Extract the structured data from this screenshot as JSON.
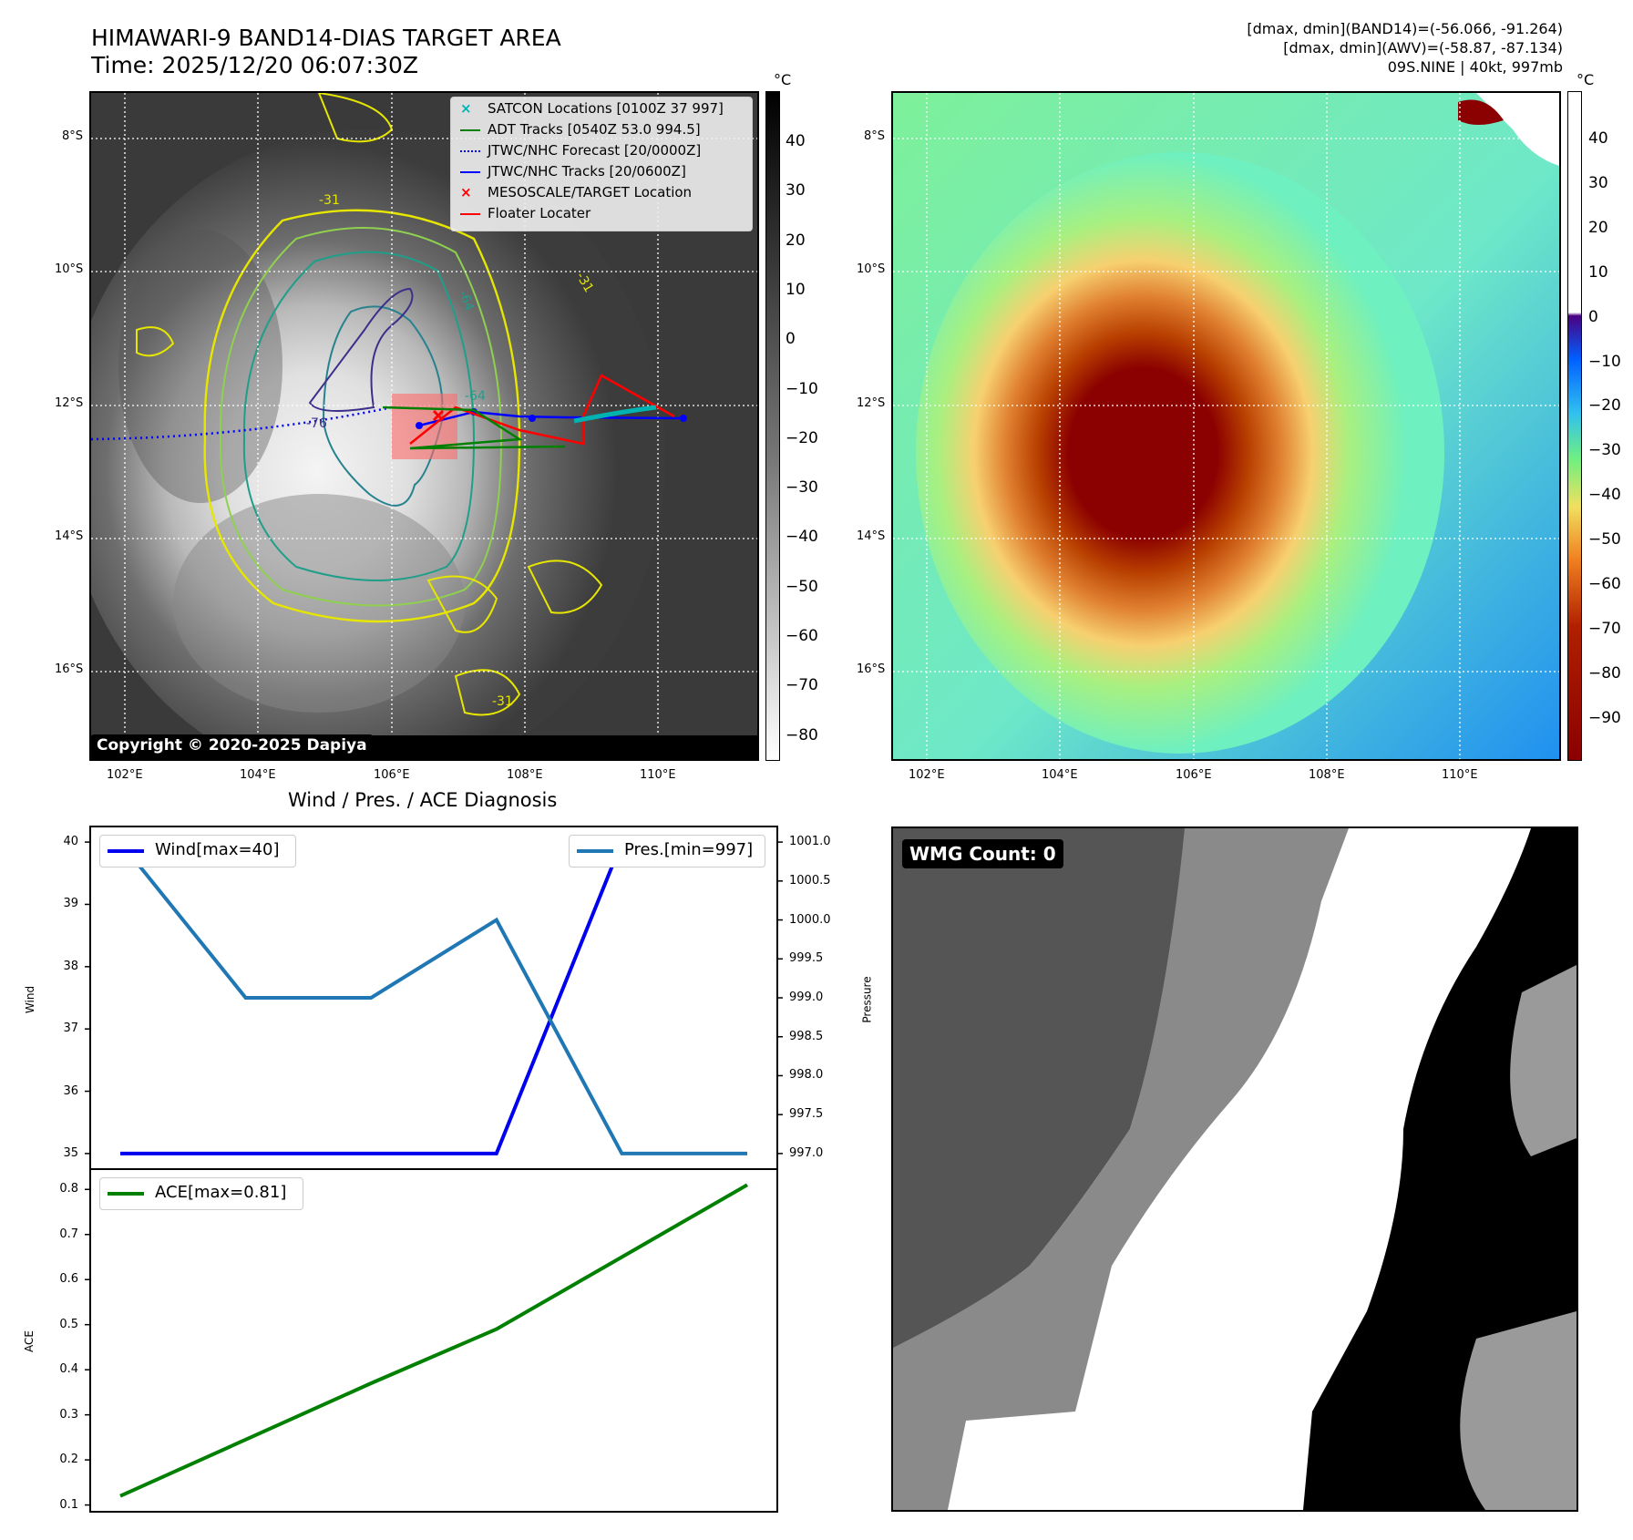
{
  "header": {
    "title_line1": "HIMAWARI-9 BAND14-DIAS TARGET AREA",
    "title_line2": "Time: 2025/12/20 06:07:30Z",
    "info_line1": "[dmax, dmin](BAND14)=(-56.066, -91.264)",
    "info_line2": "[dmax, dmin](AWV)=(-58.87, -87.134)",
    "info_line3": "09S.NINE | 40kt, 997mb"
  },
  "map_axes": {
    "lon_ticks": [
      "102°E",
      "104°E",
      "106°E",
      "108°E",
      "110°E"
    ],
    "lat_ticks": [
      "8°S",
      "10°S",
      "12°S",
      "14°S",
      "16°S"
    ]
  },
  "colorbar_left": {
    "unit": "°C",
    "ticks": [
      "40",
      "30",
      "20",
      "10",
      "0",
      "−10",
      "−20",
      "−30",
      "−40",
      "−50",
      "−60",
      "−70",
      "−80"
    ]
  },
  "colorbar_right": {
    "unit": "°C",
    "ticks": [
      "40",
      "30",
      "20",
      "10",
      "0",
      "−10",
      "−20",
      "−30",
      "−40",
      "−50",
      "−60",
      "−70",
      "−80",
      "−90"
    ]
  },
  "map_legend": {
    "items": [
      {
        "label": "SATCON Locations [0100Z 37 997]",
        "color": "#00b3b3"
      },
      {
        "label": "ADT Tracks [0540Z 53.0 994.5]",
        "color": "#008000"
      },
      {
        "label": "JTWC/NHC Forecast [20/0000Z]",
        "color": "#0000ff"
      },
      {
        "label": "JTWC/NHC Tracks [20/0600Z]",
        "color": "#0000ff"
      },
      {
        "label": "MESOSCALE/TARGET Location",
        "color": "#ff0000"
      },
      {
        "label": "Floater Locater",
        "color": "#ff0000"
      }
    ]
  },
  "contour_labels": [
    "-31",
    "-64",
    "-76",
    "-31",
    "-31",
    "-64"
  ],
  "copyright": "Copyright © 2020-2025 Dapiya",
  "wmg_count": "WMG Count: 0",
  "diag_title": "Wind / Pres. / ACE Diagnosis",
  "chart_data": [
    {
      "type": "line",
      "title": "Wind / Pres. / ACE Diagnosis",
      "x": [
        0,
        1,
        2,
        3,
        4,
        5
      ],
      "series": [
        {
          "name": "Wind[max=40]",
          "axis": "left",
          "color": "#0000ee",
          "values": [
            35,
            35,
            35,
            35,
            40,
            40
          ]
        },
        {
          "name": "Pres.[min=997]",
          "axis": "right",
          "color": "#1f77b4",
          "values": [
            1001,
            999,
            999,
            1000,
            997,
            997
          ]
        }
      ],
      "ylabel": "Wind",
      "y2label": "Pressure",
      "ylim": [
        34.75,
        40.25
      ],
      "y2lim": [
        996.8,
        1001.2
      ],
      "yticks": [
        "35",
        "36",
        "37",
        "38",
        "39",
        "40"
      ],
      "y2ticks": [
        "997.0",
        "997.5",
        "998.0",
        "998.5",
        "999.0",
        "999.5",
        "1000.0",
        "1000.5",
        "1001.0"
      ]
    },
    {
      "type": "line",
      "x": [
        0,
        1,
        2,
        3,
        4,
        5
      ],
      "series": [
        {
          "name": "ACE[max=0.81]",
          "color": "#008000",
          "values": [
            0.12,
            0.245,
            0.37,
            0.49,
            0.65,
            0.81
          ]
        }
      ],
      "ylabel": "ACE",
      "ylim": [
        0.085,
        0.845
      ],
      "yticks": [
        "0.1",
        "0.2",
        "0.3",
        "0.4",
        "0.5",
        "0.6",
        "0.7",
        "0.8"
      ]
    }
  ]
}
